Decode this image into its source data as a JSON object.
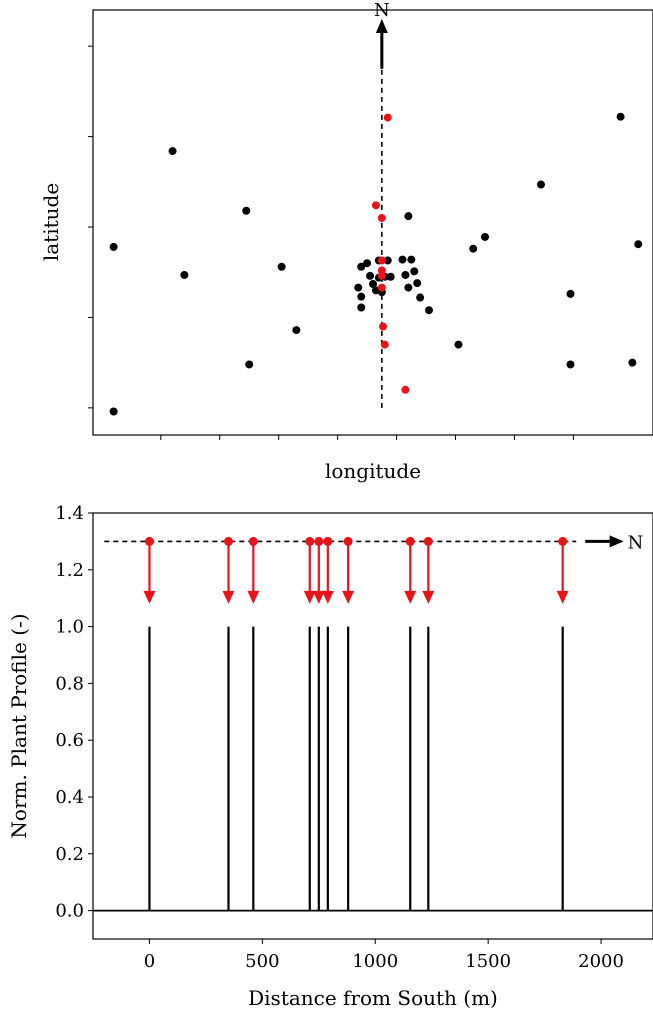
{
  "chart_data": [
    {
      "type": "scatter",
      "xlabel": "longitude",
      "ylabel": "latitude",
      "x_tick_labels": false,
      "y_tick_labels": false,
      "north_label": "N",
      "colors": {
        "plant": "#000000",
        "selected": "#e8141b",
        "axis": "#000000"
      },
      "plants": [
        [
          -4.55,
          5.28
        ],
        [
          -3.55,
          6.34
        ],
        [
          -3.35,
          4.97
        ],
        [
          -4.55,
          3.46
        ],
        [
          -2.3,
          5.68
        ],
        [
          -2.25,
          3.98
        ],
        [
          -1.7,
          5.06
        ],
        [
          -1.45,
          4.36
        ],
        [
          -0.35,
          5.06
        ],
        [
          -0.4,
          4.83
        ],
        [
          -0.35,
          4.73
        ],
        [
          -0.35,
          4.61
        ],
        [
          -0.25,
          5.1
        ],
        [
          -0.2,
          4.96
        ],
        [
          -0.15,
          4.87
        ],
        [
          -0.1,
          4.8
        ],
        [
          -0.05,
          5.13
        ],
        [
          -0.05,
          4.94
        ],
        [
          0.0,
          4.78
        ],
        [
          0.05,
          4.95
        ],
        [
          0.1,
          5.13
        ],
        [
          0.15,
          4.95
        ],
        [
          0.35,
          5.14
        ],
        [
          0.4,
          4.97
        ],
        [
          0.45,
          4.83
        ],
        [
          0.5,
          5.14
        ],
        [
          0.55,
          5.01
        ],
        [
          0.6,
          4.88
        ],
        [
          0.65,
          4.72
        ],
        [
          0.45,
          5.62
        ],
        [
          0.8,
          4.58
        ],
        [
          1.3,
          4.2
        ],
        [
          1.55,
          5.26
        ],
        [
          1.75,
          5.39
        ],
        [
          2.7,
          5.97
        ],
        [
          3.2,
          4.76
        ],
        [
          3.2,
          3.98
        ],
        [
          4.05,
          6.72
        ],
        [
          4.25,
          4.0
        ],
        [
          4.35,
          5.31
        ]
      ],
      "selected": [
        [
          0.1,
          6.71
        ],
        [
          -0.1,
          5.74
        ],
        [
          0.0,
          5.6
        ],
        [
          0.0,
          5.13
        ],
        [
          0.0,
          5.02
        ],
        [
          0.0,
          4.96
        ],
        [
          0.0,
          4.83
        ],
        [
          0.02,
          4.4
        ],
        [
          0.05,
          4.2
        ],
        [
          0.4,
          3.7
        ]
      ],
      "xlim": [
        -4.9,
        4.6
      ],
      "ylim": [
        3.2,
        7.9
      ],
      "profile_line_x": 0,
      "profile_line_ylim": [
        3.5,
        7.3
      ],
      "north_arrow": {
        "x": 0,
        "y_start": 7.25,
        "y_end": 7.8
      }
    },
    {
      "type": "line",
      "xlabel": "Distance from South (m)",
      "ylabel": "Norm. Plant Profile (-)",
      "xlim": [
        -250,
        2230
      ],
      "ylim": [
        -0.1,
        1.4
      ],
      "x_ticks": [
        0,
        500,
        1000,
        1500,
        2000
      ],
      "y_ticks": [
        0.0,
        0.2,
        0.4,
        0.6,
        0.8,
        1.0,
        1.2,
        1.4
      ],
      "y_tick_labels": [
        "0.0",
        "0.2",
        "0.4",
        "0.6",
        "0.8",
        "1.0",
        "1.2",
        "1.4"
      ],
      "x_tick_labels": [
        "0",
        "500",
        "1000",
        "1500",
        "2000"
      ],
      "north_label": "N",
      "colors": {
        "profile": "#000000",
        "marker": "#e8141b"
      },
      "plant_positions": [
        0,
        350,
        460,
        710,
        750,
        790,
        880,
        1155,
        1235,
        1830
      ],
      "profile_value": 1.0,
      "marker_y": 1.3,
      "arrow_y_top": 1.3,
      "arrow_y_bottom": 1.08,
      "baseline_line": {
        "x_start": -200,
        "x_end": 1890,
        "y": 1.3
      },
      "north_arrow": {
        "x_start": 1930,
        "x_end": 2100,
        "y": 1.3
      }
    }
  ]
}
